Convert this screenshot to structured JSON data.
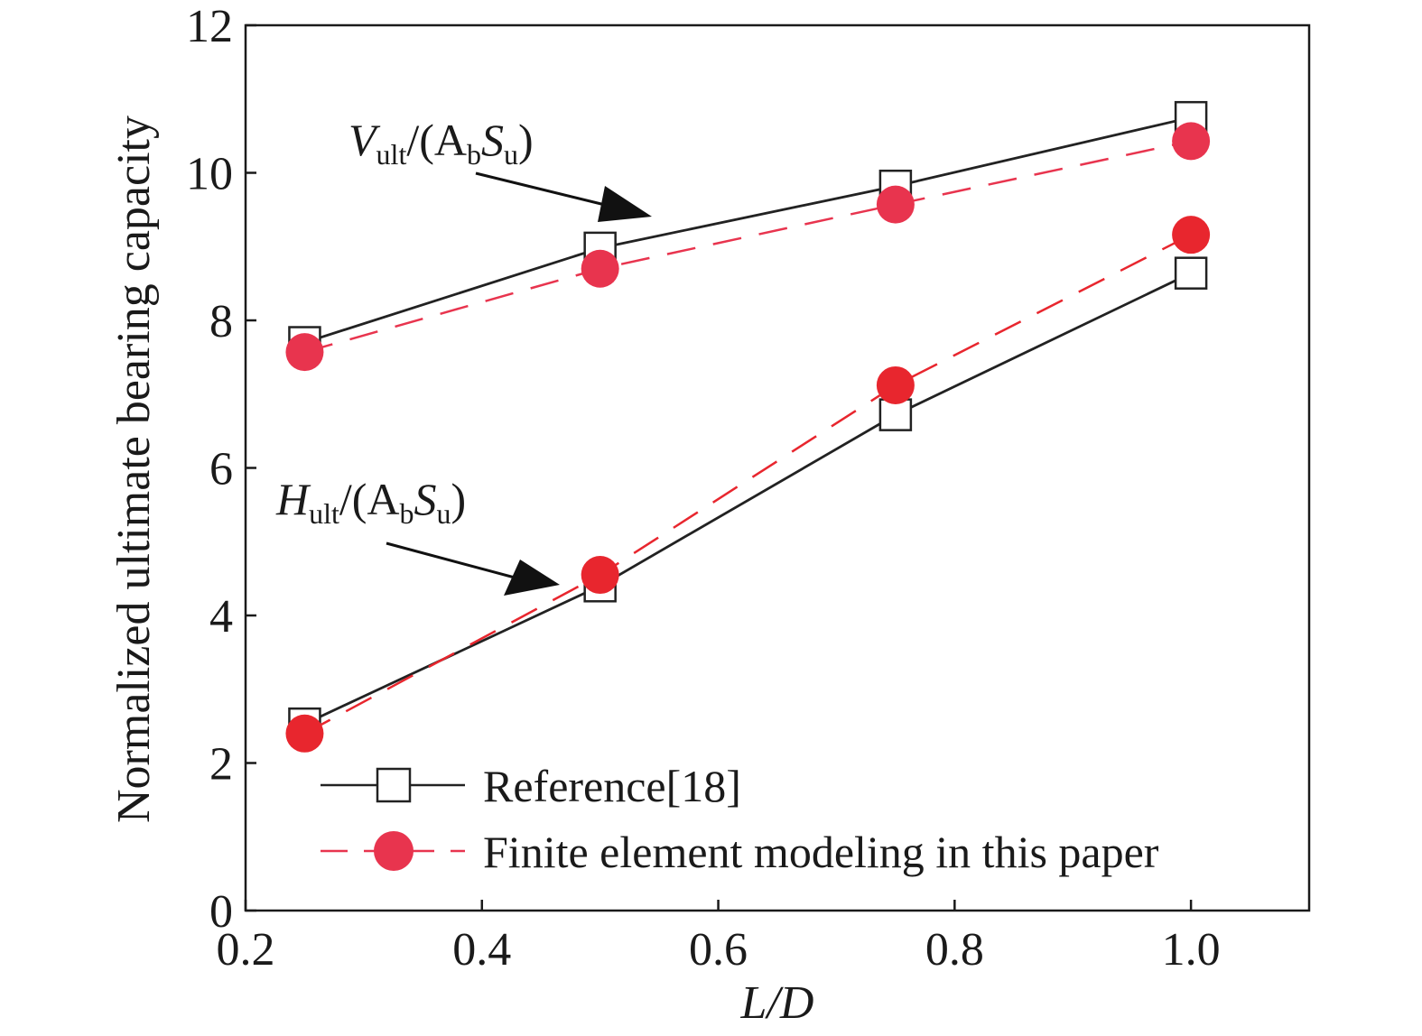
{
  "chart_data": {
    "type": "line",
    "xlabel": "L/D",
    "ylabel": "Normalized ultimate bearing capacity",
    "xlim": [
      0.2,
      1.1
    ],
    "ylim": [
      0,
      12
    ],
    "x_ticks": [
      "0.2",
      "0.4",
      "0.6",
      "0.8",
      "1.0"
    ],
    "y_ticks": [
      "0",
      "2",
      "4",
      "6",
      "8",
      "10",
      "12"
    ],
    "grid": false,
    "legend_position": "bottom-left",
    "legend": [
      "Reference[18]",
      "Finite element modeling in this paper"
    ],
    "x": [
      0.25,
      0.5,
      0.75,
      1.0
    ],
    "series": [
      {
        "name": "Reference[18]",
        "group": "V",
        "values": [
          7.7,
          8.98,
          9.82,
          10.75
        ],
        "marker": "square",
        "line": "solid",
        "color": "#222222"
      },
      {
        "name": "Finite element modeling in this paper",
        "group": "V",
        "values": [
          7.57,
          8.7,
          9.57,
          10.43
        ],
        "marker": "circle",
        "line": "dashed",
        "color": "#e8344e"
      },
      {
        "name": "Reference[18]",
        "group": "H",
        "values": [
          2.53,
          4.4,
          6.72,
          8.64
        ],
        "marker": "square",
        "line": "solid",
        "color": "#222222"
      },
      {
        "name": "Finite element modeling in this paper",
        "group": "H",
        "values": [
          2.4,
          4.55,
          7.12,
          9.16
        ],
        "marker": "circle",
        "line": "dashed",
        "color": "#e8262e"
      }
    ],
    "annotations": [
      {
        "id": "v",
        "main": "V",
        "main_sub": "ult",
        "mid": "/(A",
        "mid_sub": "b",
        "tail": "S",
        "tail_sub": "u",
        "close": ")"
      },
      {
        "id": "h",
        "main": "H",
        "main_sub": "ult",
        "mid": "/(A",
        "mid_sub": "b",
        "tail": "S",
        "tail_sub": "u",
        "close": ")"
      }
    ]
  }
}
